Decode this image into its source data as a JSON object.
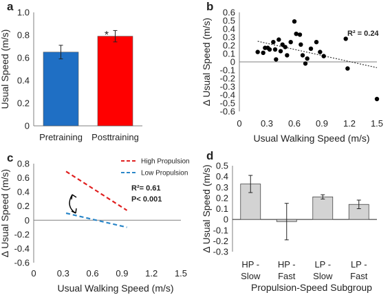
{
  "chart_data": [
    {
      "panel": "a",
      "type": "bar",
      "categories": [
        "Pretraining",
        "Posttraining"
      ],
      "values": [
        0.65,
        0.79
      ],
      "errors": [
        0.06,
        0.05
      ],
      "colors": [
        "#1f6fc4",
        "#ff0000"
      ],
      "ylabel": "Usual Speed (m/s)",
      "ylim": [
        0,
        1
      ],
      "yticks": [
        "0",
        "0.2",
        "0.4",
        "0.6",
        "0.8",
        "1.0"
      ],
      "annotation": "*"
    },
    {
      "panel": "b",
      "type": "scatter",
      "xlabel": "Usual Walking Speed (m/s)",
      "ylabel": "Δ Usual Speed (m/s)",
      "xlim": [
        0,
        1.5
      ],
      "ylim": [
        -0.6,
        0.6
      ],
      "xticks": [
        "0",
        "0.3",
        "0.6",
        "0.9",
        "1.2",
        "1.5"
      ],
      "yticks": [
        "-0.6",
        "-0.5",
        "-0.4",
        "-0.3",
        "-0.2",
        "-0.1",
        "0",
        "0.1",
        "0.2",
        "0.3",
        "0.4",
        "0.5",
        "0.6"
      ],
      "points": [
        [
          0.2,
          0.12
        ],
        [
          0.26,
          0.11
        ],
        [
          0.28,
          0.17
        ],
        [
          0.31,
          0.17
        ],
        [
          0.33,
          0.15
        ],
        [
          0.37,
          0.24
        ],
        [
          0.39,
          0.15
        ],
        [
          0.4,
          0.03
        ],
        [
          0.43,
          0.27
        ],
        [
          0.45,
          0.13
        ],
        [
          0.47,
          0.21
        ],
        [
          0.5,
          0.18
        ],
        [
          0.52,
          0.08
        ],
        [
          0.56,
          0.24
        ],
        [
          0.6,
          0.49
        ],
        [
          0.62,
          0.34
        ],
        [
          0.66,
          0.33
        ],
        [
          0.67,
          0.21
        ],
        [
          0.69,
          0.08
        ],
        [
          0.72,
          -0.02
        ],
        [
          0.74,
          0.04
        ],
        [
          0.78,
          0.16
        ],
        [
          0.84,
          0.24
        ],
        [
          0.88,
          0.12
        ],
        [
          0.92,
          0.07
        ],
        [
          1.16,
          0.28
        ],
        [
          1.18,
          -0.08
        ],
        [
          1.5,
          -0.45
        ]
      ],
      "trendline": [
        [
          0.2,
          0.25
        ],
        [
          1.5,
          -0.07
        ]
      ],
      "annotation": "R² = 0.24"
    },
    {
      "panel": "c",
      "type": "line",
      "xlabel": "Usual Walking Speed (m/s)",
      "ylabel": "Δ Usual Speed (m/s)",
      "xlim": [
        0,
        1.5
      ],
      "ylim": [
        -0.6,
        0.8
      ],
      "xticks": [
        "0",
        "0.3",
        "0.6",
        "0.9",
        "1.2",
        "1.5"
      ],
      "yticks": [
        "-0.6",
        "-0.4",
        "-0.2",
        "0",
        "0.2",
        "0.4",
        "0.6",
        "0.8"
      ],
      "series": [
        {
          "name": "High Propulsion",
          "color": "#e01f1f",
          "x": [
            0.33,
            0.95
          ],
          "y": [
            0.69,
            0.14
          ]
        },
        {
          "name": "Low Propulsion",
          "color": "#2a86c8",
          "x": [
            0.33,
            0.95
          ],
          "y": [
            0.1,
            -0.1
          ]
        }
      ],
      "annotation": [
        "R²= 0.61",
        "P< 0.001"
      ]
    },
    {
      "panel": "d",
      "type": "bar",
      "categories": [
        [
          "HP -",
          "Slow"
        ],
        [
          "HP -",
          "Fast"
        ],
        [
          "LP -",
          "Slow"
        ],
        [
          "LP -",
          "Fast"
        ]
      ],
      "values": [
        0.33,
        -0.02,
        0.21,
        0.14
      ],
      "errors": [
        0.08,
        0.17,
        0.02,
        0.04
      ],
      "color": "#d3d3d3",
      "xlabel": "Propulsion-Speed Subgroup",
      "ylabel": "Δ Usual Speed (m/s)",
      "ylim": [
        -0.3,
        0.5
      ],
      "yticks": [
        "-0.3",
        "-0.2",
        "-0.1",
        "0",
        "0.1",
        "0.2",
        "0.3",
        "0.4",
        "0.5"
      ]
    }
  ],
  "panels": {
    "a": {
      "letter": "a"
    },
    "b": {
      "letter": "b"
    },
    "c": {
      "letter": "c"
    },
    "d": {
      "letter": "d"
    }
  }
}
